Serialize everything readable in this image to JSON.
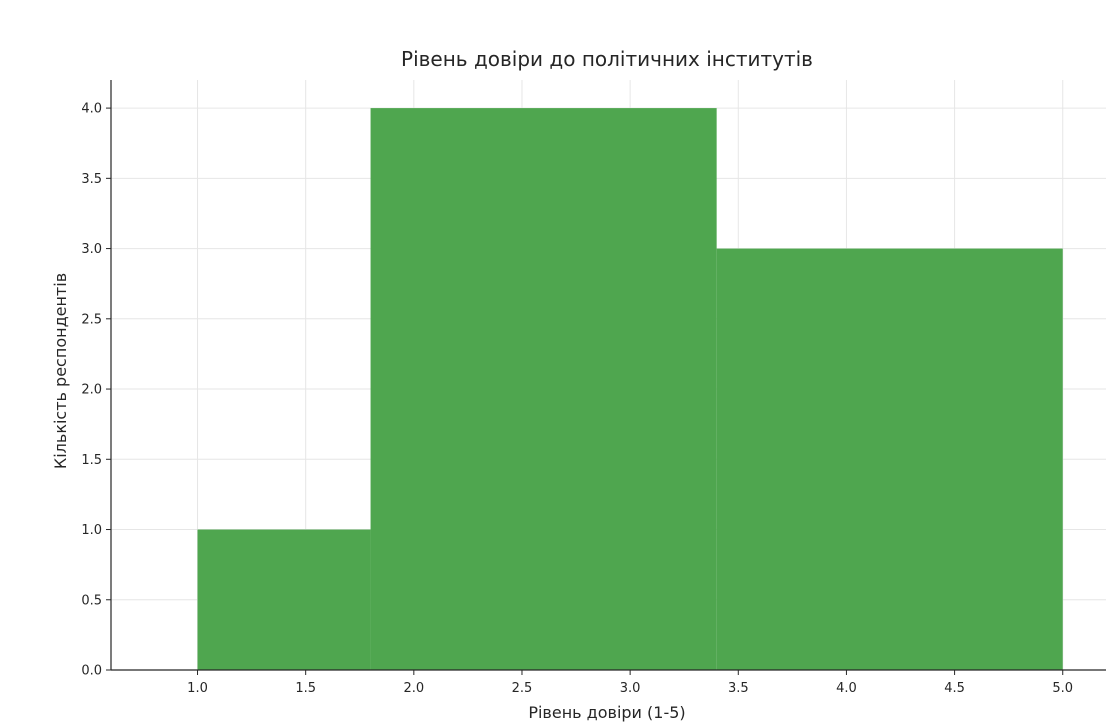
{
  "chart_data": {
    "type": "bar",
    "title": "Рівень довіри до політичних інститутів",
    "xlabel": "Рівень довіри (1-5)",
    "ylabel": "Кількість респондентів",
    "bins": [
      {
        "start": 1.0,
        "end": 1.8,
        "value": 1
      },
      {
        "start": 1.8,
        "end": 3.4,
        "value": 4
      },
      {
        "start": 3.4,
        "end": 5.0,
        "value": 3
      }
    ],
    "xlim": [
      0.6,
      5.2
    ],
    "ylim": [
      0,
      4.2
    ],
    "x_ticks": [
      "1.0",
      "1.5",
      "2.0",
      "2.5",
      "3.0",
      "3.5",
      "4.0",
      "4.5",
      "5.0"
    ],
    "y_ticks": [
      "0.0",
      "0.5",
      "1.0",
      "1.5",
      "2.0",
      "2.5",
      "3.0",
      "3.5",
      "4.0"
    ],
    "grid": true,
    "bar_color": "#4fa64f"
  }
}
